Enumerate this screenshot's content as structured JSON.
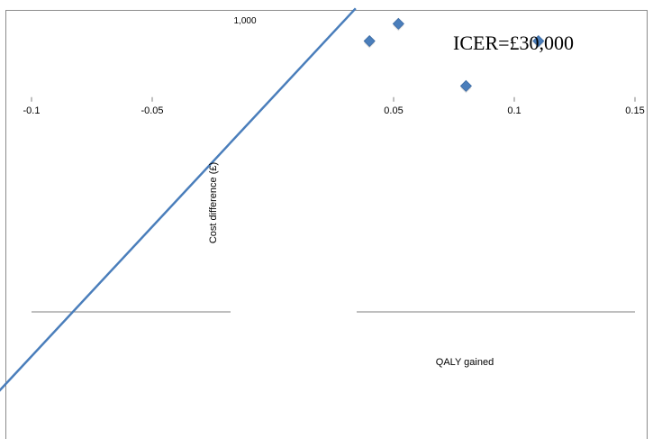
{
  "chart_data": {
    "type": "scatter",
    "title": "ICER=£30,000",
    "xlabel": "QALY gained",
    "ylabel": "Cost difference (£)",
    "xlim": [
      -0.1,
      0.15
    ],
    "ylim": [
      -4000,
      1000
    ],
    "x_ticks": [
      "-0.1",
      "-0.05",
      "0.05",
      "0.1",
      "0.15"
    ],
    "y_ticks": [
      "1,000"
    ],
    "points": [
      {
        "x": 0.04,
        "y": 650
      },
      {
        "x": 0.052,
        "y": 850
      },
      {
        "x": 0.11,
        "y": 650
      },
      {
        "x": 0.08,
        "y": 130
      }
    ],
    "threshold_line": {
      "slope": 30000
    },
    "grid": false,
    "legend": "none",
    "colors": {
      "marker": "#4a7ebb",
      "line": "#4a7ebb",
      "axis": "#7f7f7f",
      "frame": "#8c8c8c"
    }
  }
}
